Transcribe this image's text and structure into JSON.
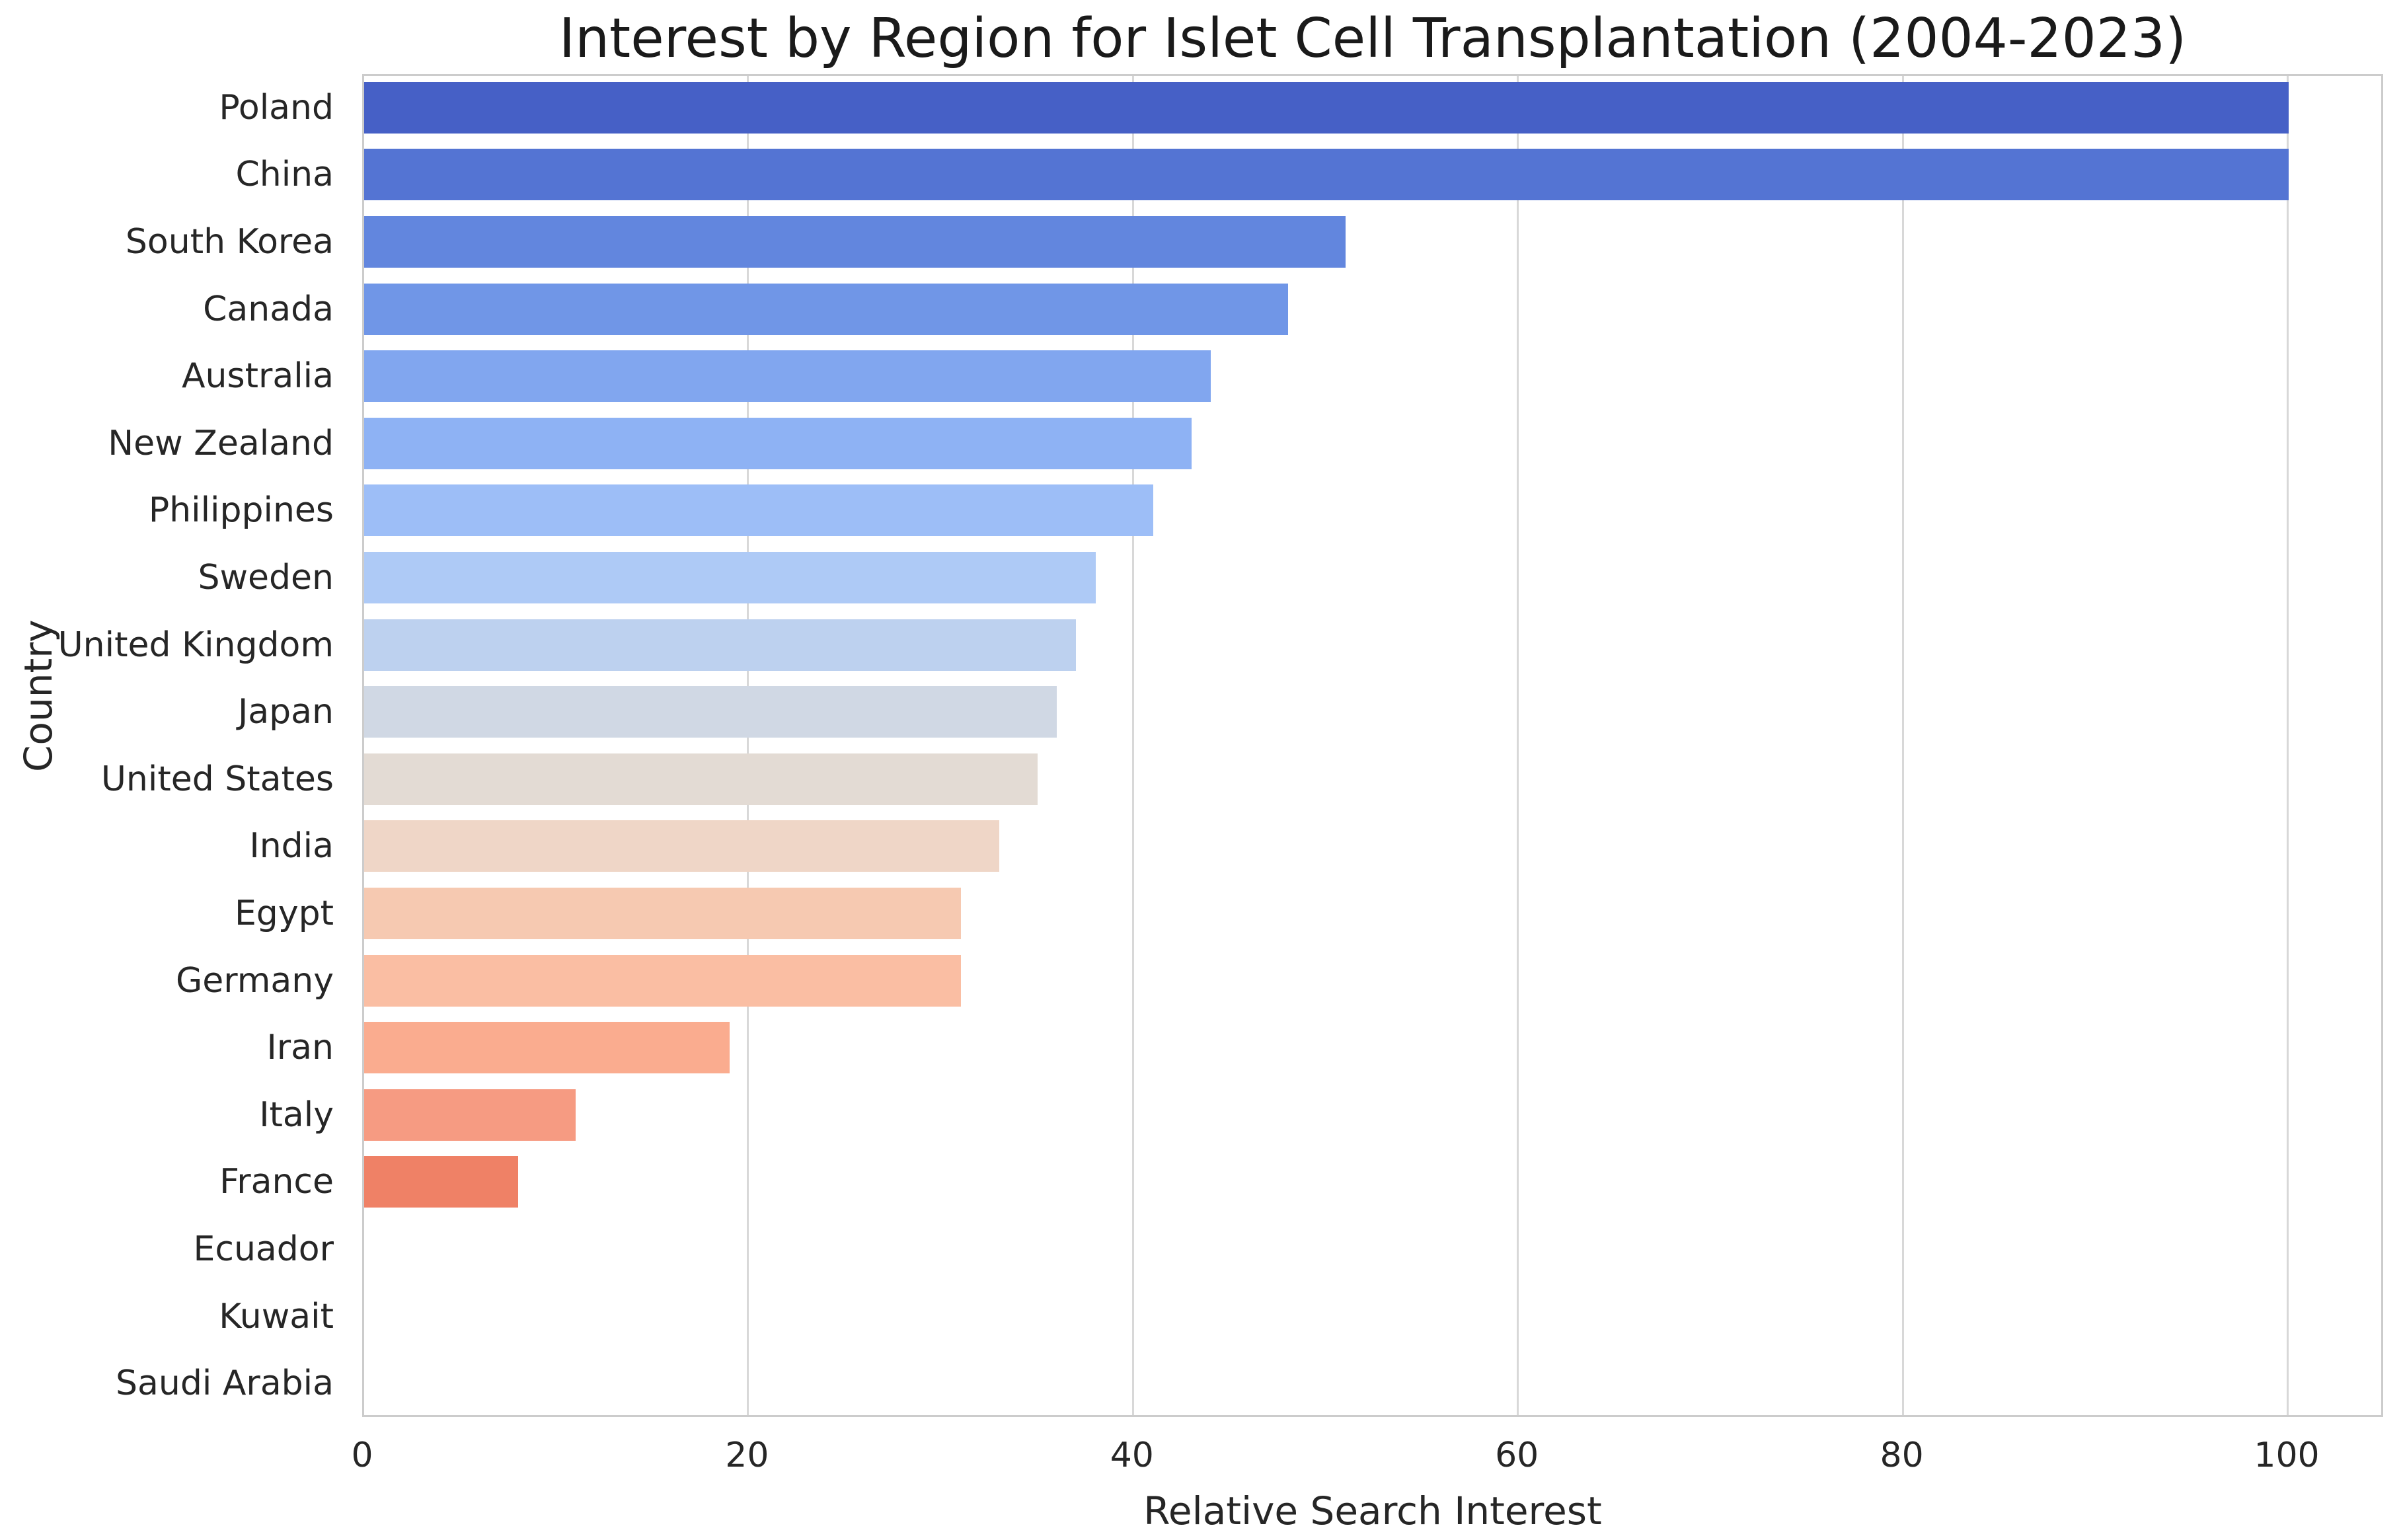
{
  "chart_data": {
    "type": "bar",
    "orientation": "horizontal",
    "title": "Interest by Region for Islet Cell Transplantation (2004-2023)",
    "xlabel": "Relative Search Interest",
    "ylabel": "Country",
    "colormap": "coolwarm",
    "grid": "vertical-gridlines-on",
    "legend": "none",
    "xlim": [
      0,
      105
    ],
    "x_ticks": [
      0,
      20,
      40,
      60,
      80,
      100
    ],
    "categories": [
      "Poland",
      "China",
      "South Korea",
      "Canada",
      "Australia",
      "New Zealand",
      "Philippines",
      "Sweden",
      "United Kingdom",
      "Japan",
      "United States",
      "India",
      "Egypt",
      "Germany",
      "Iran",
      "Italy",
      "France",
      "Ecuador",
      "Kuwait",
      "Saudi Arabia"
    ],
    "values": [
      100,
      100,
      51,
      48,
      44,
      43,
      41,
      38,
      37,
      36,
      35,
      33,
      31,
      31,
      19,
      11,
      8,
      0,
      0,
      0
    ],
    "bar_colors": [
      "#4660c6",
      "#5474d3",
      "#6286de",
      "#7096e7",
      "#81a6ef",
      "#8eb2f4",
      "#9dbef7",
      "#aecaf6",
      "#bdd1ef",
      "#d0d8e4",
      "#e3dbd4",
      "#efd6c7",
      "#f6c9b1",
      "#fabea3",
      "#faac8f",
      "#f69b82",
      "#ef8166",
      "#e06a50",
      "#cc4c3f",
      "#b40426"
    ],
    "colors_meta": {
      "grid_color": "#d8d8d8",
      "spine_color": "#cccccc",
      "text_color": "#262626",
      "background": "#ffffff"
    }
  }
}
